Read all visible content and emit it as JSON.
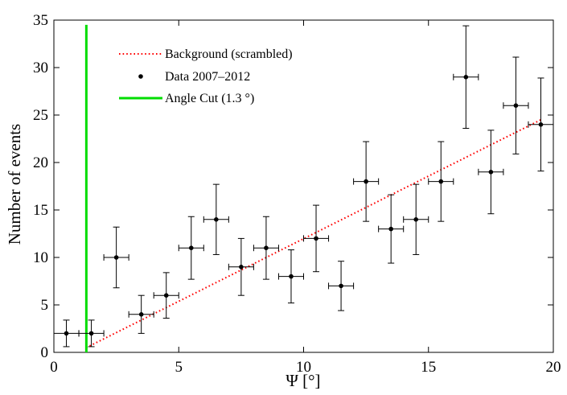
{
  "chart_data": {
    "type": "scatter",
    "xlabel": "Ψ [°]",
    "ylabel": "Number of events",
    "xlim": [
      0,
      20
    ],
    "ylim": [
      0,
      35
    ],
    "x_ticks": [
      0,
      5,
      10,
      15,
      20
    ],
    "y_ticks": [
      0,
      5,
      10,
      15,
      20,
      25,
      30,
      35
    ],
    "x_tick_labels": [
      "0",
      "5",
      "10",
      "15",
      "20"
    ],
    "y_tick_labels": [
      "0",
      "5",
      "10",
      "15",
      "20",
      "25",
      "30",
      "35"
    ],
    "grid": false,
    "legend_position": "top-left",
    "legend": [
      {
        "label": "Background (scrambled)",
        "style": "dotted-line",
        "color": "#ff0000"
      },
      {
        "label": "Data 2007–2012",
        "style": "point",
        "color": "#000000"
      },
      {
        "label": "Angle Cut (1.3 °)",
        "style": "solid-line",
        "color": "#00dd00"
      }
    ],
    "series": [
      {
        "name": "Data 2007–2012",
        "kind": "points_with_errorbars",
        "color": "#000000",
        "x": [
          0.5,
          1.5,
          2.5,
          3.5,
          4.5,
          5.5,
          6.5,
          7.5,
          8.5,
          9.5,
          10.5,
          11.5,
          12.5,
          13.5,
          14.5,
          15.5,
          16.5,
          17.5,
          18.5,
          19.5
        ],
        "y": [
          2,
          2,
          10,
          4,
          6,
          11,
          14,
          9,
          11,
          8,
          12,
          7,
          18,
          13,
          14,
          18,
          29,
          19,
          26,
          24
        ],
        "x_err": 0.5,
        "y_err_low": [
          1.4,
          1.4,
          3.2,
          2.0,
          2.4,
          3.3,
          3.7,
          3.0,
          3.3,
          2.8,
          3.5,
          2.6,
          4.2,
          3.6,
          3.7,
          4.2,
          5.4,
          4.4,
          5.1,
          4.9
        ],
        "y_err_high": [
          1.4,
          1.4,
          3.2,
          2.0,
          2.4,
          3.3,
          3.7,
          3.0,
          3.3,
          2.8,
          3.5,
          2.6,
          4.2,
          3.6,
          3.7,
          4.2,
          5.4,
          4.4,
          5.1,
          4.9
        ]
      },
      {
        "name": "Background (scrambled)",
        "kind": "dotted_line",
        "color": "#ff0000",
        "x": [
          1.3,
          19.5
        ],
        "y": [
          0.5,
          24.5
        ]
      },
      {
        "name": "Angle Cut (1.3 °)",
        "kind": "vertical_line",
        "color": "#00dd00",
        "x": [
          1.3,
          1.3
        ],
        "y": [
          0,
          34.5
        ]
      }
    ]
  }
}
